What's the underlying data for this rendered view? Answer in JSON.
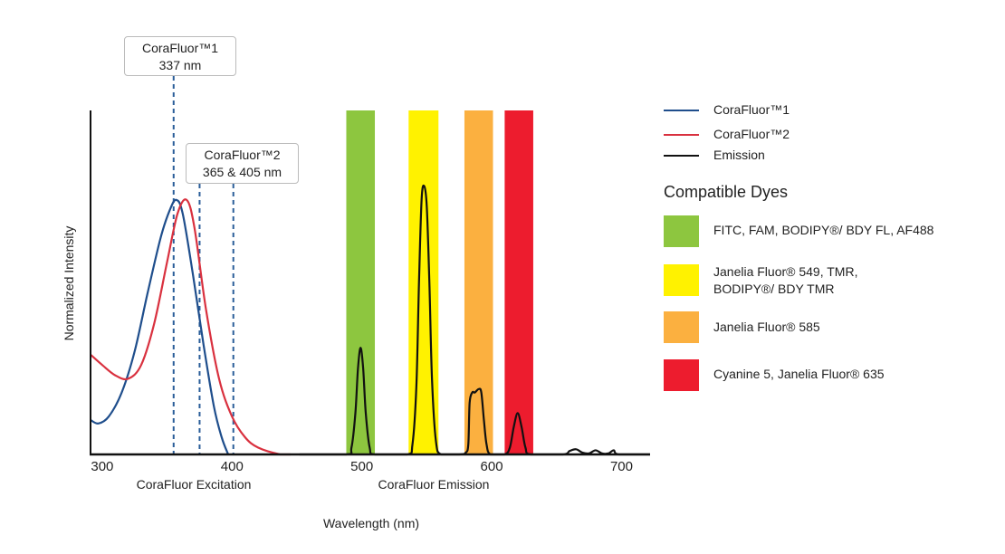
{
  "chart_data": {
    "type": "line",
    "xlabel": "Wavelength (nm)",
    "ylabel": "Normalized Intensity",
    "xlim": [
      291,
      722
    ],
    "ylim": [
      0,
      1
    ],
    "x_ticks": [
      300,
      400,
      500,
      600,
      700
    ],
    "x_tick_labels": [
      "300",
      "400",
      "500",
      "600",
      "700"
    ],
    "grid": false,
    "section_labels": {
      "excitation": "CoraFluor Excitation",
      "emission": "CoraFluor Emission"
    },
    "callouts": [
      {
        "line1": "CoraFluor™1",
        "line2": "337 nm",
        "dashed_at": [
          355
        ]
      },
      {
        "line1": "CoraFluor™2",
        "line2": "365 & 405 nm",
        "dashed_at": [
          375,
          401
        ]
      }
    ],
    "series": [
      {
        "name": "CoraFluor™1",
        "color": "#1f4e8c",
        "points": [
          [
            291,
            0.1
          ],
          [
            297,
            0.09
          ],
          [
            305,
            0.11
          ],
          [
            315,
            0.18
          ],
          [
            325,
            0.3
          ],
          [
            335,
            0.47
          ],
          [
            345,
            0.63
          ],
          [
            352,
            0.71
          ],
          [
            357,
            0.74
          ],
          [
            362,
            0.7
          ],
          [
            370,
            0.52
          ],
          [
            378,
            0.32
          ],
          [
            386,
            0.14
          ],
          [
            392,
            0.05
          ],
          [
            397,
            0.0
          ]
        ]
      },
      {
        "name": "CoraFluor™2",
        "color": "#d9313f",
        "points": [
          [
            291,
            0.29
          ],
          [
            300,
            0.26
          ],
          [
            310,
            0.23
          ],
          [
            320,
            0.22
          ],
          [
            330,
            0.26
          ],
          [
            340,
            0.38
          ],
          [
            350,
            0.56
          ],
          [
            358,
            0.7
          ],
          [
            365,
            0.74
          ],
          [
            371,
            0.66
          ],
          [
            380,
            0.42
          ],
          [
            390,
            0.22
          ],
          [
            400,
            0.11
          ],
          [
            410,
            0.05
          ],
          [
            420,
            0.02
          ],
          [
            437,
            0.0
          ],
          [
            445,
            0.0
          ]
        ]
      },
      {
        "name": "Emission",
        "color": "#111111",
        "points": [
          [
            452,
            0
          ],
          [
            488,
            0
          ],
          [
            492,
            0.02
          ],
          [
            495,
            0.12
          ],
          [
            497,
            0.25
          ],
          [
            499,
            0.31
          ],
          [
            501,
            0.25
          ],
          [
            503,
            0.12
          ],
          [
            506,
            0.02
          ],
          [
            510,
            0
          ],
          [
            535,
            0
          ],
          [
            539,
            0.03
          ],
          [
            542,
            0.2
          ],
          [
            544,
            0.5
          ],
          [
            546,
            0.74
          ],
          [
            548,
            0.78
          ],
          [
            550,
            0.72
          ],
          [
            552,
            0.5
          ],
          [
            554,
            0.22
          ],
          [
            557,
            0.04
          ],
          [
            561,
            0
          ],
          [
            575,
            0
          ],
          [
            580,
            0.005
          ],
          [
            582,
            0.03
          ],
          [
            583,
            0.15
          ],
          [
            585,
            0.18
          ],
          [
            587,
            0.18
          ],
          [
            590,
            0.19
          ],
          [
            592,
            0.18
          ],
          [
            594,
            0.1
          ],
          [
            596,
            0.03
          ],
          [
            599,
            0
          ],
          [
            610,
            0
          ],
          [
            614,
            0.02
          ],
          [
            617,
            0.08
          ],
          [
            620,
            0.12
          ],
          [
            623,
            0.08
          ],
          [
            626,
            0.02
          ],
          [
            630,
            0
          ],
          [
            655,
            0
          ],
          [
            660,
            0.01
          ],
          [
            665,
            0.015
          ],
          [
            670,
            0.005
          ],
          [
            675,
            0.003
          ],
          [
            680,
            0.012
          ],
          [
            685,
            0.003
          ],
          [
            690,
            0.003
          ],
          [
            694,
            0.012
          ],
          [
            698,
            0
          ],
          [
            722,
            0
          ]
        ]
      }
    ],
    "dye_bands": [
      {
        "label": "FITC, FAM, BODIPY®/ BDY FL, AF488",
        "color": "#8dc63f",
        "range": [
          488,
          510
        ]
      },
      {
        "label": "Janelia Fluor® 549, TMR, BODIPY®/ BDY TMR",
        "lines": [
          "Janelia Fluor® 549, TMR,",
          "BODIPY®/ BDY TMR"
        ],
        "color": "#fff200",
        "range": [
          536,
          559
        ]
      },
      {
        "label": "Janelia Fluor® 585",
        "color": "#fbb040",
        "range": [
          579,
          601
        ]
      },
      {
        "label": "Cyanine 5, Janelia Fluor® 635",
        "color": "#ed1c2e",
        "range": [
          610,
          632
        ]
      }
    ],
    "legend": {
      "placement": "right",
      "dyes_title": "Compatible Dyes"
    }
  }
}
